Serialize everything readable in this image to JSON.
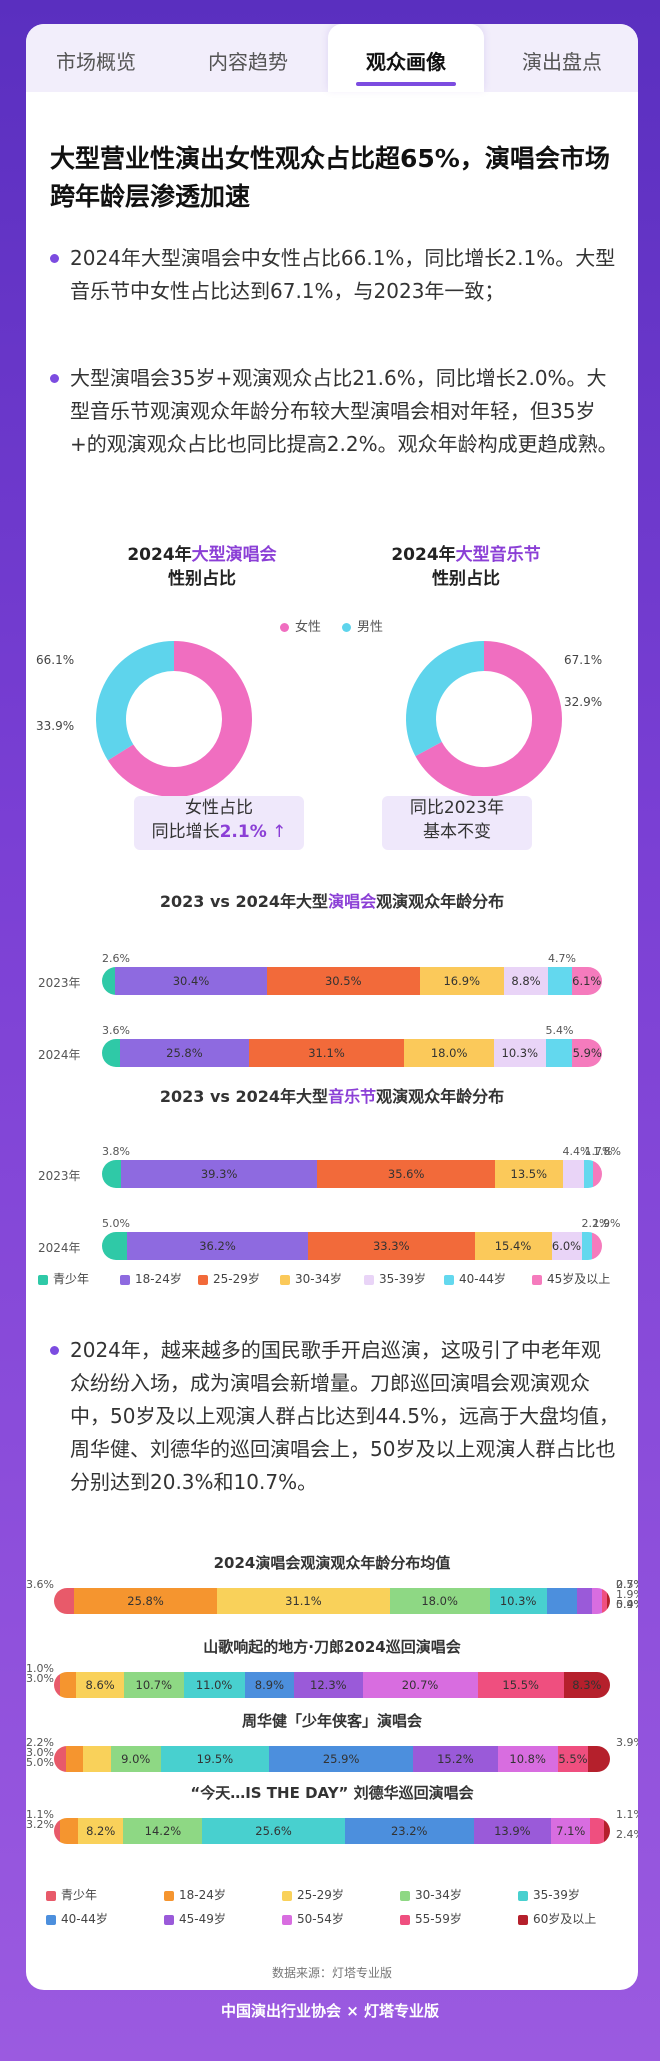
{
  "tabs": [
    {
      "label": "市场概览"
    },
    {
      "label": "内容趋势"
    },
    {
      "label": "观众画像"
    },
    {
      "label": "演出盘点"
    }
  ],
  "headline": "大型营业性演出女性观众占比超65%，演唱会市场跨年龄层渗透加速",
  "bullets": [
    "2024年大型演唱会中女性占比66.1%，同比增长2.1%。大型音乐节中女性占比达到67.1%，与2023年一致；",
    "大型演唱会35岁+观演观众占比21.6%，同比增长2.0%。大型音乐节观演观众年龄分布较大型演唱会相对年轻，但35岁+的观演观众占比也同比提高2.2%。观众年龄构成更趋成熟。",
    "2024年，越来越多的国民歌手开启巡演，这吸引了中老年观众纷纷入场，成为演唱会新增量。刀郎巡回演唱会观演观众中，50岁及以上观演人群占比达到44.5%，远高于大盘均值，周华健、刘德华的巡回演唱会上，50岁及以上观演人群占比也分别达到20.3%和10.7%。"
  ],
  "donuts": {
    "left": {
      "title_pre": "2024年",
      "title_hl": "大型演唱会",
      "title_post": "性别占比",
      "female": "66.1%",
      "male": "33.9%",
      "cap1": "女性占比",
      "cap2_pre": "同比增长",
      "cap2_hl": "2.1%",
      "arrow": "↑"
    },
    "right": {
      "title_pre": "2024年",
      "title_hl": "大型音乐节",
      "title_post": "性别占比",
      "female": "67.1%",
      "male": "32.9%",
      "cap1": "同比2023年",
      "cap2": "基本不变"
    },
    "legend_female": "女性",
    "legend_male": "男性"
  },
  "colors": {
    "female": "#f06ec0",
    "male": "#5ed4ec",
    "accent": "#7c4ce0",
    "age1": [
      "#2fc9a7",
      "#8e6ae0",
      "#f26a3a",
      "#fbc95a",
      "#e9d4f7",
      "#63d8ee",
      "#f57bbd"
    ],
    "age2": [
      "#e85a6a",
      "#f5952f",
      "#f9d15a",
      "#8ed884",
      "#48d0cf",
      "#4c8fdd",
      "#9a5ad9",
      "#d86de0",
      "#ef4f7f",
      "#b5202c"
    ]
  },
  "chart_data": [
    {
      "type": "bar",
      "title_pre": "2023 vs 2024年大型",
      "title_hl": "演唱会",
      "title_post": "观演观众年龄分布",
      "categories": [
        "2023年",
        "2024年"
      ],
      "series": [
        {
          "name": "青少年",
          "values": [
            2.6,
            3.6
          ]
        },
        {
          "name": "18-24岁",
          "values": [
            30.4,
            25.8
          ]
        },
        {
          "name": "25-29岁",
          "values": [
            30.5,
            31.1
          ]
        },
        {
          "name": "30-34岁",
          "values": [
            16.9,
            18.0
          ]
        },
        {
          "name": "35-39岁",
          "values": [
            8.8,
            10.3
          ]
        },
        {
          "name": "40-44岁",
          "values": [
            4.7,
            5.4
          ]
        },
        {
          "name": "45岁及以上",
          "values": [
            6.1,
            5.9
          ]
        }
      ]
    },
    {
      "type": "bar",
      "title_pre": "2023 vs 2024年大型",
      "title_hl": "音乐节",
      "title_post": "观演观众年龄分布",
      "categories": [
        "2023年",
        "2024年"
      ],
      "series": [
        {
          "name": "青少年",
          "values": [
            3.8,
            5.0
          ]
        },
        {
          "name": "18-24岁",
          "values": [
            39.3,
            36.2
          ]
        },
        {
          "name": "25-29岁",
          "values": [
            35.6,
            33.3
          ]
        },
        {
          "name": "30-34岁",
          "values": [
            13.5,
            15.4
          ]
        },
        {
          "name": "35-39岁",
          "values": [
            4.4,
            6.0
          ]
        },
        {
          "name": "40-44岁",
          "values": [
            1.7,
            2.2
          ]
        },
        {
          "name": "45岁及以上",
          "values": [
            1.8,
            1.9
          ]
        }
      ]
    },
    {
      "type": "bar",
      "title": "2024演唱会观演观众年龄分布均值",
      "series_names": [
        "青少年",
        "18-24岁",
        "25-29岁",
        "30-34岁",
        "35-39岁",
        "40-44岁",
        "45-49岁",
        "50-54岁",
        "55-59岁",
        "60岁及以上"
      ],
      "rows": [
        {
          "title": "2024演唱会观演观众年龄分布均值",
          "values": [
            3.6,
            25.8,
            31.1,
            18.0,
            10.3,
            5.4,
            2.7,
            1.9,
            0.9,
            0.5
          ]
        },
        {
          "title": "山歌响起的地方·刀郎2024巡回演唱会",
          "values": [
            1.0,
            3.0,
            8.6,
            10.7,
            11.0,
            8.9,
            12.3,
            20.7,
            15.5,
            8.3
          ]
        },
        {
          "title": "周华健「少年侠客」演唱会",
          "values": [
            2.2,
            3.0,
            5.0,
            9.0,
            19.5,
            25.9,
            15.2,
            10.8,
            5.5,
            3.9
          ]
        },
        {
          "title": "“今天…IS THE DAY” 刘德华巡回演唱会",
          "values": [
            1.1,
            3.2,
            8.2,
            14.2,
            25.6,
            23.2,
            13.9,
            7.1,
            2.4,
            1.1
          ]
        }
      ]
    }
  ],
  "source": "数据来源：灯塔专业版",
  "footer": "中国演出行业协会 × 灯塔专业版"
}
